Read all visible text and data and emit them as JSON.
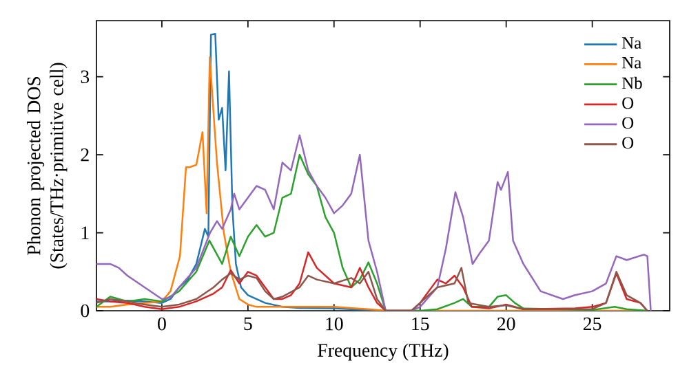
{
  "chart_data": {
    "type": "line",
    "xlabel": "Frequency (THz)",
    "ylabel": "Phonon projected DOS (States/THz·primitive cell)",
    "xlim": [
      -3.8,
      29.5
    ],
    "ylim": [
      0,
      3.72
    ],
    "xticks": [
      0,
      5,
      10,
      15,
      20,
      25
    ],
    "yticks": [
      0,
      1,
      2,
      3
    ],
    "legend": "top right",
    "grid": false,
    "series": [
      {
        "name": "Na",
        "color": "#1f77b4",
        "x": [
          -3.8,
          -3,
          -2,
          -1,
          0,
          0.5,
          1,
          1.5,
          2,
          2.5,
          2.7,
          2.85,
          3.1,
          3.3,
          3.5,
          3.7,
          3.9,
          4.1,
          4.3,
          4.6,
          5,
          5.5,
          6,
          7,
          8,
          10,
          12,
          13
        ],
        "values": [
          0.12,
          0.12,
          0.13,
          0.12,
          0.1,
          0.15,
          0.3,
          0.4,
          0.6,
          1.05,
          0.95,
          3.54,
          3.55,
          2.45,
          2.6,
          1.8,
          3.07,
          1.3,
          0.6,
          0.3,
          0.2,
          0.15,
          0.1,
          0.05,
          0.035,
          0.03,
          0.01,
          0
        ]
      },
      {
        "name": "Na",
        "color": "#ff7f0e",
        "x": [
          -3.8,
          -3,
          -2,
          -1,
          0,
          0.5,
          1.05,
          1.4,
          1.6,
          2,
          2.36,
          2.6,
          2.78,
          3.2,
          3.6,
          4,
          4.5,
          5,
          5.5,
          7,
          10,
          12,
          13,
          15,
          20,
          25,
          28.2
        ],
        "values": [
          0.05,
          0.05,
          0.08,
          0.1,
          0.12,
          0.25,
          0.7,
          1.84,
          1.84,
          1.87,
          2.29,
          1.25,
          3.25,
          1.9,
          1.0,
          0.5,
          0.15,
          0.08,
          0.05,
          0.05,
          0.05,
          0.02,
          0,
          0,
          0,
          0,
          0
        ]
      },
      {
        "name": "Nb",
        "color": "#2ca02c",
        "x": [
          -3.8,
          -3,
          -2,
          -1,
          0,
          1,
          2,
          2.76,
          3.5,
          4,
          4.5,
          5,
          5.5,
          6,
          6.5,
          7,
          7.5,
          8,
          8.5,
          9,
          9.5,
          10,
          10.5,
          11,
          11.5,
          12,
          12.5,
          13,
          15,
          16,
          17,
          17.5,
          18,
          19,
          19.5,
          20,
          20.5,
          21,
          25,
          26.3,
          27,
          28.2
        ],
        "values": [
          0.05,
          0.18,
          0.12,
          0.15,
          0.12,
          0.25,
          0.5,
          0.9,
          0.6,
          0.95,
          0.7,
          0.95,
          1.1,
          0.95,
          1.0,
          1.45,
          1.5,
          2.0,
          1.75,
          1.6,
          1.2,
          1.0,
          0.55,
          0.3,
          0.4,
          0.62,
          0.35,
          0,
          0,
          0.02,
          0.1,
          0.15,
          0.05,
          0.05,
          0.18,
          0.2,
          0.1,
          0.03,
          0.01,
          0.05,
          0.02,
          0
        ]
      },
      {
        "name": "O",
        "color": "#d62728",
        "x": [
          -3.8,
          -3,
          -2,
          -1,
          0,
          1,
          2,
          3,
          3.5,
          4,
          4.5,
          5,
          5.5,
          6,
          6.5,
          7,
          7.5,
          8,
          8.5,
          9,
          10,
          11,
          11.5,
          12,
          12.5,
          13,
          14.5,
          15,
          16,
          16.5,
          17,
          17.5,
          18,
          19,
          20,
          21,
          24,
          25,
          25.8,
          26.4,
          27,
          27.8,
          28.2
        ],
        "values": [
          0.15,
          0.12,
          0.1,
          0.05,
          0.02,
          0.05,
          0.12,
          0.22,
          0.3,
          0.52,
          0.35,
          0.5,
          0.45,
          0.3,
          0.15,
          0.15,
          0.2,
          0.35,
          0.75,
          0.55,
          0.35,
          0.3,
          0.55,
          0.3,
          0.1,
          0,
          0,
          0.1,
          0.4,
          0.35,
          0.45,
          0.3,
          0.05,
          0.03,
          0.08,
          0.02,
          0.03,
          0.05,
          0.1,
          0.48,
          0.15,
          0.1,
          0
        ]
      },
      {
        "name": "O",
        "color": "#9467bd",
        "x": [
          -3.8,
          -3,
          -2.5,
          -2,
          -1,
          0,
          0.5,
          1,
          2,
          2.8,
          3.2,
          3.5,
          4,
          4.2,
          4.5,
          5,
          5.5,
          6,
          6.5,
          7,
          7.5,
          8,
          8.5,
          9,
          9.5,
          10,
          10.5,
          11,
          11.5,
          12,
          12.5,
          13,
          14.5,
          15,
          16,
          16.5,
          17.05,
          17.5,
          18.05,
          18.5,
          19,
          19.5,
          19.7,
          20.1,
          20.4,
          21,
          22,
          23.3,
          24,
          25,
          25.8,
          26.4,
          27,
          28,
          28.2,
          28.4
        ],
        "values": [
          0.6,
          0.6,
          0.55,
          0.45,
          0.3,
          0.15,
          0.17,
          0.3,
          0.55,
          1.0,
          1.15,
          1.05,
          1.3,
          1.5,
          1.3,
          1.45,
          1.6,
          1.55,
          1.3,
          1.9,
          1.8,
          2.25,
          1.8,
          1.6,
          1.45,
          1.25,
          1.35,
          1.5,
          2.0,
          0.9,
          0.5,
          0,
          0,
          0.05,
          0.3,
          0.8,
          1.52,
          1.2,
          0.6,
          0.75,
          0.9,
          1.65,
          1.55,
          1.78,
          0.9,
          0.6,
          0.25,
          0.15,
          0.2,
          0.25,
          0.35,
          0.7,
          0.65,
          0.72,
          0.7,
          0
        ]
      },
      {
        "name": "O",
        "color": "#8c564b",
        "x": [
          -3.8,
          -3,
          -2,
          -1,
          0,
          1,
          2,
          3,
          3.5,
          4,
          4.5,
          5,
          5.5,
          6,
          6.5,
          7,
          8,
          8.5,
          9,
          10,
          11,
          11.5,
          12,
          12.5,
          13,
          14.5,
          15,
          16,
          17,
          17.4,
          17.8,
          19,
          20,
          21,
          25,
          25.8,
          26.4,
          27,
          27.8,
          28.2
        ],
        "values": [
          0.1,
          0.15,
          0.12,
          0.08,
          0.05,
          0.08,
          0.15,
          0.3,
          0.4,
          0.48,
          0.4,
          0.45,
          0.42,
          0.25,
          0.15,
          0.18,
          0.3,
          0.45,
          0.4,
          0.35,
          0.42,
          0.35,
          0.5,
          0.15,
          0,
          0,
          0.1,
          0.3,
          0.35,
          0.55,
          0.1,
          0.05,
          0.07,
          0.02,
          0.02,
          0.1,
          0.5,
          0.2,
          0.1,
          0
        ]
      }
    ]
  }
}
